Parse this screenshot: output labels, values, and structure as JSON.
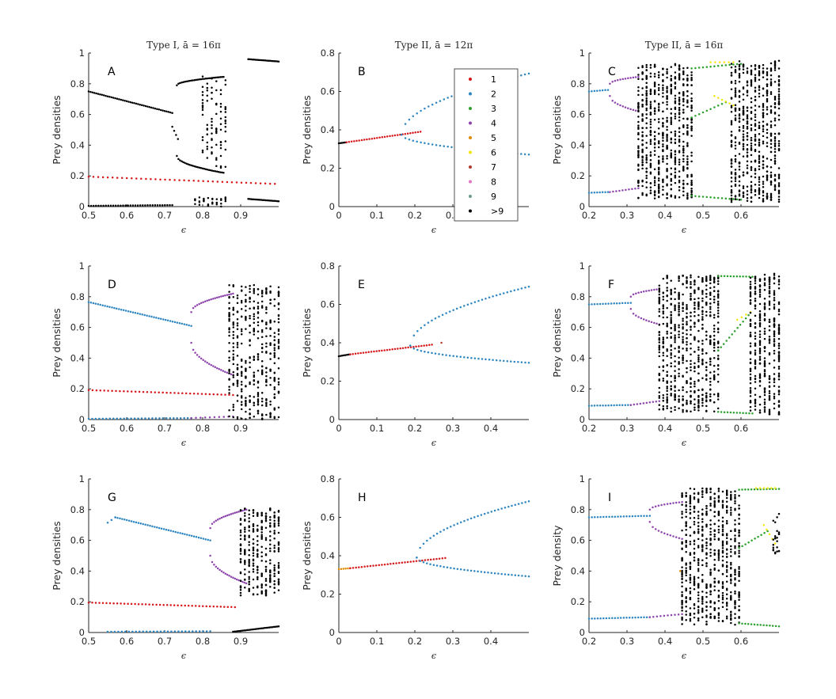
{
  "colors": {
    "1": "#d7191c",
    "2": "#2e86c1",
    "3": "#2ca02c",
    "4": "#8e44ad",
    "5": "#e08a00",
    "6": "#f1e70a",
    "7": "#b03a2e",
    "8": "#e377c2",
    "9": "#6c9a8b",
    ">9": "#000000"
  },
  "legend": {
    "panel": "B",
    "entries": [
      "1",
      "2",
      "3",
      "4",
      "5",
      "6",
      "7",
      "8",
      "9",
      ">9"
    ]
  },
  "chart_data": [
    {
      "id": "A",
      "type": "scatter",
      "label": "A",
      "title": "Type I, ā = 16π",
      "xlabel": "ϵ",
      "ylabel": "Prey densities",
      "xlim": [
        0.5,
        1.0
      ],
      "ylim": [
        0,
        1
      ],
      "xticks": [
        0.5,
        0.6,
        0.7,
        0.8,
        0.9
      ],
      "yticks": [
        0,
        0.2,
        0.4,
        0.6,
        0.8,
        1
      ],
      "series": [
        {
          "period": ">9",
          "kind": "line",
          "x0": 0.5,
          "x1": 0.72,
          "y0": 0.75,
          "y1": 0.61,
          "n": 45
        },
        {
          "period": ">9",
          "kind": "line",
          "x0": 0.72,
          "x1": 0.735,
          "y0": 0.52,
          "y1": 0.44,
          "n": 4
        },
        {
          "period": ">9",
          "kind": "curve",
          "x0": 0.732,
          "x1": 0.855,
          "ya": 0.79,
          "yb": 0.845,
          "n": 30
        },
        {
          "period": ">9",
          "kind": "curve",
          "x0": 0.732,
          "x1": 0.855,
          "ya": 0.33,
          "yb": 0.22,
          "n": 30
        },
        {
          "period": ">9",
          "kind": "chaos",
          "x0": 0.8,
          "x1": 0.86,
          "ylo": 0.25,
          "yhi": 0.85,
          "n": 90
        },
        {
          "period": ">9",
          "kind": "line",
          "x0": 0.5,
          "x1": 0.72,
          "y0": 0.005,
          "y1": 0.01,
          "n": 35
        },
        {
          "period": ">9",
          "kind": "chaos",
          "x0": 0.78,
          "x1": 0.86,
          "ylo": 0.0,
          "yhi": 0.06,
          "n": 30
        },
        {
          "period": ">9",
          "kind": "line",
          "x0": 0.92,
          "x1": 1.0,
          "y0": 0.96,
          "y1": 0.945,
          "n": 22
        },
        {
          "period": ">9",
          "kind": "line",
          "x0": 0.92,
          "x1": 1.0,
          "y0": 0.05,
          "y1": 0.035,
          "n": 22
        },
        {
          "period": "1",
          "kind": "line",
          "x0": 0.5,
          "x1": 0.99,
          "y0": 0.195,
          "y1": 0.148,
          "n": 40
        }
      ]
    },
    {
      "id": "B",
      "type": "scatter",
      "label": "B",
      "title": "Type II, ā = 12π",
      "xlabel": "ϵ",
      "ylabel": "Prey densities",
      "xlim": [
        0,
        0.5
      ],
      "ylim": [
        0,
        0.8
      ],
      "xticks": [
        0,
        0.1,
        0.2,
        0.3,
        0.4
      ],
      "yticks": [
        0,
        0.2,
        0.4,
        0.6,
        0.8
      ],
      "series": [
        {
          "period": ">9",
          "kind": "line",
          "x0": 0.0,
          "x1": 0.02,
          "y0": 0.33,
          "y1": 0.335,
          "n": 6
        },
        {
          "period": "1",
          "kind": "line",
          "x0": 0.02,
          "x1": 0.215,
          "y0": 0.335,
          "y1": 0.39,
          "n": 30
        },
        {
          "period": "2",
          "kind": "sqrt",
          "x0": 0.165,
          "x1": 0.5,
          "yc": 0.375,
          "amp": 0.55,
          "n": 34
        },
        {
          "period": "2",
          "kind": "sqrt",
          "x0": 0.165,
          "x1": 0.5,
          "yc": 0.375,
          "amp": -0.18,
          "n": 34
        }
      ]
    },
    {
      "id": "C",
      "type": "scatter",
      "label": "C",
      "title": "Type II, ā = 16π",
      "xlabel": "ϵ",
      "ylabel": "Prey densities",
      "xlim": [
        0.2,
        0.7
      ],
      "ylim": [
        0,
        1
      ],
      "xticks": [
        0.2,
        0.3,
        0.4,
        0.5,
        0.6
      ],
      "yticks": [
        0,
        0.2,
        0.4,
        0.6,
        0.8,
        1
      ],
      "series": [
        {
          "period": "2",
          "kind": "line",
          "x0": 0.2,
          "x1": 0.25,
          "y0": 0.75,
          "y1": 0.76,
          "n": 8
        },
        {
          "period": "2",
          "kind": "line",
          "x0": 0.2,
          "x1": 0.25,
          "y0": 0.09,
          "y1": 0.095,
          "n": 8
        },
        {
          "period": "4",
          "kind": "curve",
          "x0": 0.255,
          "x1": 0.33,
          "ya": 0.8,
          "yb": 0.845,
          "n": 12
        },
        {
          "period": "4",
          "kind": "curve",
          "x0": 0.255,
          "x1": 0.33,
          "ya": 0.72,
          "yb": 0.62,
          "n": 12
        },
        {
          "period": "4",
          "kind": "line",
          "x0": 0.255,
          "x1": 0.33,
          "y0": 0.095,
          "y1": 0.12,
          "n": 10
        },
        {
          "period": ">9",
          "kind": "chaos",
          "x0": 0.33,
          "x1": 0.47,
          "ylo": 0.05,
          "yhi": 0.93,
          "n": 650
        },
        {
          "period": "3",
          "kind": "line",
          "x0": 0.47,
          "x1": 0.6,
          "y0": 0.9,
          "y1": 0.93,
          "n": 14
        },
        {
          "period": "3",
          "kind": "line",
          "x0": 0.47,
          "x1": 0.56,
          "y0": 0.58,
          "y1": 0.68,
          "n": 10
        },
        {
          "period": "3",
          "kind": "line",
          "x0": 0.47,
          "x1": 0.6,
          "y0": 0.07,
          "y1": 0.045,
          "n": 14
        },
        {
          "period": "6",
          "kind": "line",
          "x0": 0.52,
          "x1": 0.58,
          "y0": 0.94,
          "y1": 0.94,
          "n": 6
        },
        {
          "period": "6",
          "kind": "line",
          "x0": 0.53,
          "x1": 0.58,
          "y0": 0.72,
          "y1": 0.66,
          "n": 6
        },
        {
          "period": ">9",
          "kind": "chaos",
          "x0": 0.575,
          "x1": 0.7,
          "ylo": 0.03,
          "yhi": 0.95,
          "n": 600
        }
      ]
    },
    {
      "id": "D",
      "type": "scatter",
      "label": "D",
      "title": "",
      "xlabel": "ϵ",
      "ylabel": "Prey densities",
      "xlim": [
        0.5,
        1.0
      ],
      "ylim": [
        0,
        1
      ],
      "xticks": [
        0.5,
        0.6,
        0.7,
        0.8,
        0.9
      ],
      "yticks": [
        0,
        0.2,
        0.4,
        0.6,
        0.8,
        1
      ],
      "series": [
        {
          "period": "2",
          "kind": "line",
          "x0": 0.5,
          "x1": 0.77,
          "y0": 0.765,
          "y1": 0.61,
          "n": 45
        },
        {
          "period": "2",
          "kind": "line",
          "x0": 0.5,
          "x1": 0.77,
          "y0": 0.005,
          "y1": 0.01,
          "n": 30
        },
        {
          "period": "4",
          "kind": "curve",
          "x0": 0.77,
          "x1": 0.88,
          "ya": 0.7,
          "yb": 0.82,
          "n": 22
        },
        {
          "period": "4",
          "kind": "curve",
          "x0": 0.77,
          "x1": 0.88,
          "ya": 0.5,
          "yb": 0.29,
          "n": 22
        },
        {
          "period": "4",
          "kind": "line",
          "x0": 0.77,
          "x1": 0.88,
          "y0": 0.01,
          "y1": 0.02,
          "n": 10
        },
        {
          "period": "1",
          "kind": "line",
          "x0": 0.5,
          "x1": 0.88,
          "y0": 0.192,
          "y1": 0.16,
          "n": 38
        },
        {
          "period": ">9",
          "kind": "chaos",
          "x0": 0.87,
          "x1": 1.0,
          "ylo": 0.0,
          "yhi": 0.88,
          "n": 420
        }
      ]
    },
    {
      "id": "E",
      "type": "scatter",
      "label": "E",
      "title": "",
      "xlabel": "ϵ",
      "ylabel": "Prey densities",
      "xlim": [
        0,
        0.5
      ],
      "ylim": [
        0,
        0.8
      ],
      "xticks": [
        0,
        0.1,
        0.2,
        0.3,
        0.4
      ],
      "yticks": [
        0,
        0.2,
        0.4,
        0.6,
        0.8
      ],
      "series": [
        {
          "period": ">9",
          "kind": "line",
          "x0": 0.0,
          "x1": 0.03,
          "y0": 0.33,
          "y1": 0.34,
          "n": 8
        },
        {
          "period": "1",
          "kind": "line",
          "x0": 0.03,
          "x1": 0.245,
          "y0": 0.34,
          "y1": 0.39,
          "n": 32
        },
        {
          "period": "7",
          "kind": "line",
          "x0": 0.27,
          "x1": 0.27,
          "y0": 0.4,
          "y1": 0.4,
          "n": 1
        },
        {
          "period": "2",
          "kind": "sqrt",
          "x0": 0.188,
          "x1": 0.5,
          "yc": 0.385,
          "amp": 0.55,
          "n": 34
        },
        {
          "period": "2",
          "kind": "sqrt",
          "x0": 0.188,
          "x1": 0.5,
          "yc": 0.385,
          "amp": -0.16,
          "n": 34
        }
      ]
    },
    {
      "id": "F",
      "type": "scatter",
      "label": "F",
      "title": "",
      "xlabel": "ϵ",
      "ylabel": "Prey densities",
      "xlim": [
        0.2,
        0.7
      ],
      "ylim": [
        0,
        1
      ],
      "xticks": [
        0.2,
        0.3,
        0.4,
        0.5,
        0.6
      ],
      "yticks": [
        0,
        0.2,
        0.4,
        0.6,
        0.8,
        1
      ],
      "series": [
        {
          "period": "2",
          "kind": "line",
          "x0": 0.2,
          "x1": 0.31,
          "y0": 0.75,
          "y1": 0.76,
          "n": 16
        },
        {
          "period": "2",
          "kind": "line",
          "x0": 0.2,
          "x1": 0.31,
          "y0": 0.09,
          "y1": 0.095,
          "n": 16
        },
        {
          "period": "4",
          "kind": "curve",
          "x0": 0.31,
          "x1": 0.385,
          "ya": 0.8,
          "yb": 0.85,
          "n": 12
        },
        {
          "period": "4",
          "kind": "curve",
          "x0": 0.31,
          "x1": 0.385,
          "ya": 0.72,
          "yb": 0.62,
          "n": 12
        },
        {
          "period": "4",
          "kind": "line",
          "x0": 0.31,
          "x1": 0.385,
          "y0": 0.095,
          "y1": 0.12,
          "n": 10
        },
        {
          "period": ">9",
          "kind": "chaos",
          "x0": 0.385,
          "x1": 0.54,
          "ylo": 0.05,
          "yhi": 0.94,
          "n": 650
        },
        {
          "period": "3",
          "kind": "line",
          "x0": 0.54,
          "x1": 0.63,
          "y0": 0.935,
          "y1": 0.93,
          "n": 12
        },
        {
          "period": "3",
          "kind": "line",
          "x0": 0.54,
          "x1": 0.62,
          "y0": 0.45,
          "y1": 0.68,
          "n": 12
        },
        {
          "period": "3",
          "kind": "line",
          "x0": 0.54,
          "x1": 0.63,
          "y0": 0.05,
          "y1": 0.04,
          "n": 12
        },
        {
          "period": "6",
          "kind": "line",
          "x0": 0.59,
          "x1": 0.625,
          "y0": 0.65,
          "y1": 0.7,
          "n": 4
        },
        {
          "period": ">9",
          "kind": "chaos",
          "x0": 0.625,
          "x1": 0.7,
          "ylo": 0.03,
          "yhi": 0.95,
          "n": 380
        }
      ]
    },
    {
      "id": "G",
      "type": "scatter",
      "label": "G",
      "title": "",
      "xlabel": "ϵ",
      "ylabel": "Prey densities",
      "xlim": [
        0.5,
        1.0
      ],
      "ylim": [
        0,
        1
      ],
      "xticks": [
        0.5,
        0.6,
        0.7,
        0.8,
        0.9
      ],
      "yticks": [
        0,
        0.2,
        0.4,
        0.6,
        0.8,
        1
      ],
      "series": [
        {
          "period": "2",
          "kind": "line",
          "x0": 0.55,
          "x1": 0.57,
          "y0": 0.715,
          "y1": 0.75,
          "n": 3
        },
        {
          "period": "2",
          "kind": "line",
          "x0": 0.57,
          "x1": 0.82,
          "y0": 0.75,
          "y1": 0.6,
          "n": 42
        },
        {
          "period": "2",
          "kind": "line",
          "x0": 0.55,
          "x1": 0.82,
          "y0": 0.005,
          "y1": 0.008,
          "n": 30
        },
        {
          "period": "4",
          "kind": "curve",
          "x0": 0.82,
          "x1": 0.915,
          "ya": 0.68,
          "yb": 0.8,
          "n": 20
        },
        {
          "period": "4",
          "kind": "curve",
          "x0": 0.82,
          "x1": 0.915,
          "ya": 0.5,
          "yb": 0.32,
          "n": 20
        },
        {
          "period": "1",
          "kind": "line",
          "x0": 0.5,
          "x1": 0.885,
          "y0": 0.195,
          "y1": 0.165,
          "n": 42
        },
        {
          "period": ">9",
          "kind": "chaos",
          "x0": 0.9,
          "x1": 1.0,
          "ylo": 0.24,
          "yhi": 0.81,
          "n": 300
        },
        {
          "period": ">9",
          "kind": "line",
          "x0": 0.88,
          "x1": 1.0,
          "y0": 0.005,
          "y1": 0.04,
          "n": 30
        }
      ]
    },
    {
      "id": "H",
      "type": "scatter",
      "label": "H",
      "title": "",
      "xlabel": "ϵ",
      "ylabel": "Prey densities",
      "xlim": [
        0,
        0.5
      ],
      "ylim": [
        0,
        0.8
      ],
      "xticks": [
        0,
        0.1,
        0.2,
        0.3,
        0.4
      ],
      "yticks": [
        0,
        0.2,
        0.4,
        0.6,
        0.8
      ],
      "series": [
        {
          "period": "5",
          "kind": "line",
          "x0": 0.0,
          "x1": 0.03,
          "y0": 0.33,
          "y1": 0.335,
          "n": 6
        },
        {
          "period": "1",
          "kind": "line",
          "x0": 0.03,
          "x1": 0.28,
          "y0": 0.335,
          "y1": 0.388,
          "n": 34
        },
        {
          "period": "2",
          "kind": "sqrt",
          "x0": 0.205,
          "x1": 0.5,
          "yc": 0.39,
          "amp": 0.54,
          "n": 34
        },
        {
          "period": "2",
          "kind": "sqrt",
          "x0": 0.205,
          "x1": 0.5,
          "yc": 0.39,
          "amp": -0.18,
          "n": 34
        }
      ]
    },
    {
      "id": "I",
      "type": "scatter",
      "label": "I",
      "title": "",
      "xlabel": "ϵ",
      "ylabel": "Prey density",
      "xlim": [
        0.2,
        0.7
      ],
      "ylim": [
        0,
        1
      ],
      "xticks": [
        0.2,
        0.3,
        0.4,
        0.5,
        0.6
      ],
      "yticks": [
        0,
        0.2,
        0.4,
        0.6,
        0.8,
        1
      ],
      "series": [
        {
          "period": "2",
          "kind": "line",
          "x0": 0.2,
          "x1": 0.36,
          "y0": 0.75,
          "y1": 0.76,
          "n": 22
        },
        {
          "period": "2",
          "kind": "line",
          "x0": 0.2,
          "x1": 0.36,
          "y0": 0.09,
          "y1": 0.1,
          "n": 22
        },
        {
          "period": "4",
          "kind": "curve",
          "x0": 0.36,
          "x1": 0.445,
          "ya": 0.8,
          "yb": 0.85,
          "n": 12
        },
        {
          "period": "4",
          "kind": "curve",
          "x0": 0.36,
          "x1": 0.445,
          "ya": 0.72,
          "yb": 0.61,
          "n": 12
        },
        {
          "period": "4",
          "kind": "line",
          "x0": 0.36,
          "x1": 0.445,
          "y0": 0.1,
          "y1": 0.12,
          "n": 10
        },
        {
          "period": "5",
          "kind": "line",
          "x0": 0.44,
          "x1": 0.44,
          "y0": 0.4,
          "y1": 0.4,
          "n": 1
        },
        {
          "period": ">9",
          "kind": "chaos",
          "x0": 0.445,
          "x1": 0.595,
          "ylo": 0.05,
          "yhi": 0.94,
          "n": 650
        },
        {
          "period": "3",
          "kind": "line",
          "x0": 0.595,
          "x1": 0.7,
          "y0": 0.93,
          "y1": 0.935,
          "n": 14
        },
        {
          "period": "3",
          "kind": "line",
          "x0": 0.595,
          "x1": 0.67,
          "y0": 0.55,
          "y1": 0.66,
          "n": 10
        },
        {
          "period": "3",
          "kind": "line",
          "x0": 0.595,
          "x1": 0.7,
          "y0": 0.06,
          "y1": 0.04,
          "n": 14
        },
        {
          "period": "6",
          "kind": "line",
          "x0": 0.64,
          "x1": 0.69,
          "y0": 0.94,
          "y1": 0.94,
          "n": 6
        },
        {
          "period": "6",
          "kind": "line",
          "x0": 0.66,
          "x1": 0.69,
          "y0": 0.7,
          "y1": 0.58,
          "n": 5
        },
        {
          "period": ">9",
          "kind": "chaos",
          "x0": 0.685,
          "x1": 0.7,
          "ylo": 0.5,
          "yhi": 0.78,
          "n": 24
        }
      ]
    }
  ]
}
